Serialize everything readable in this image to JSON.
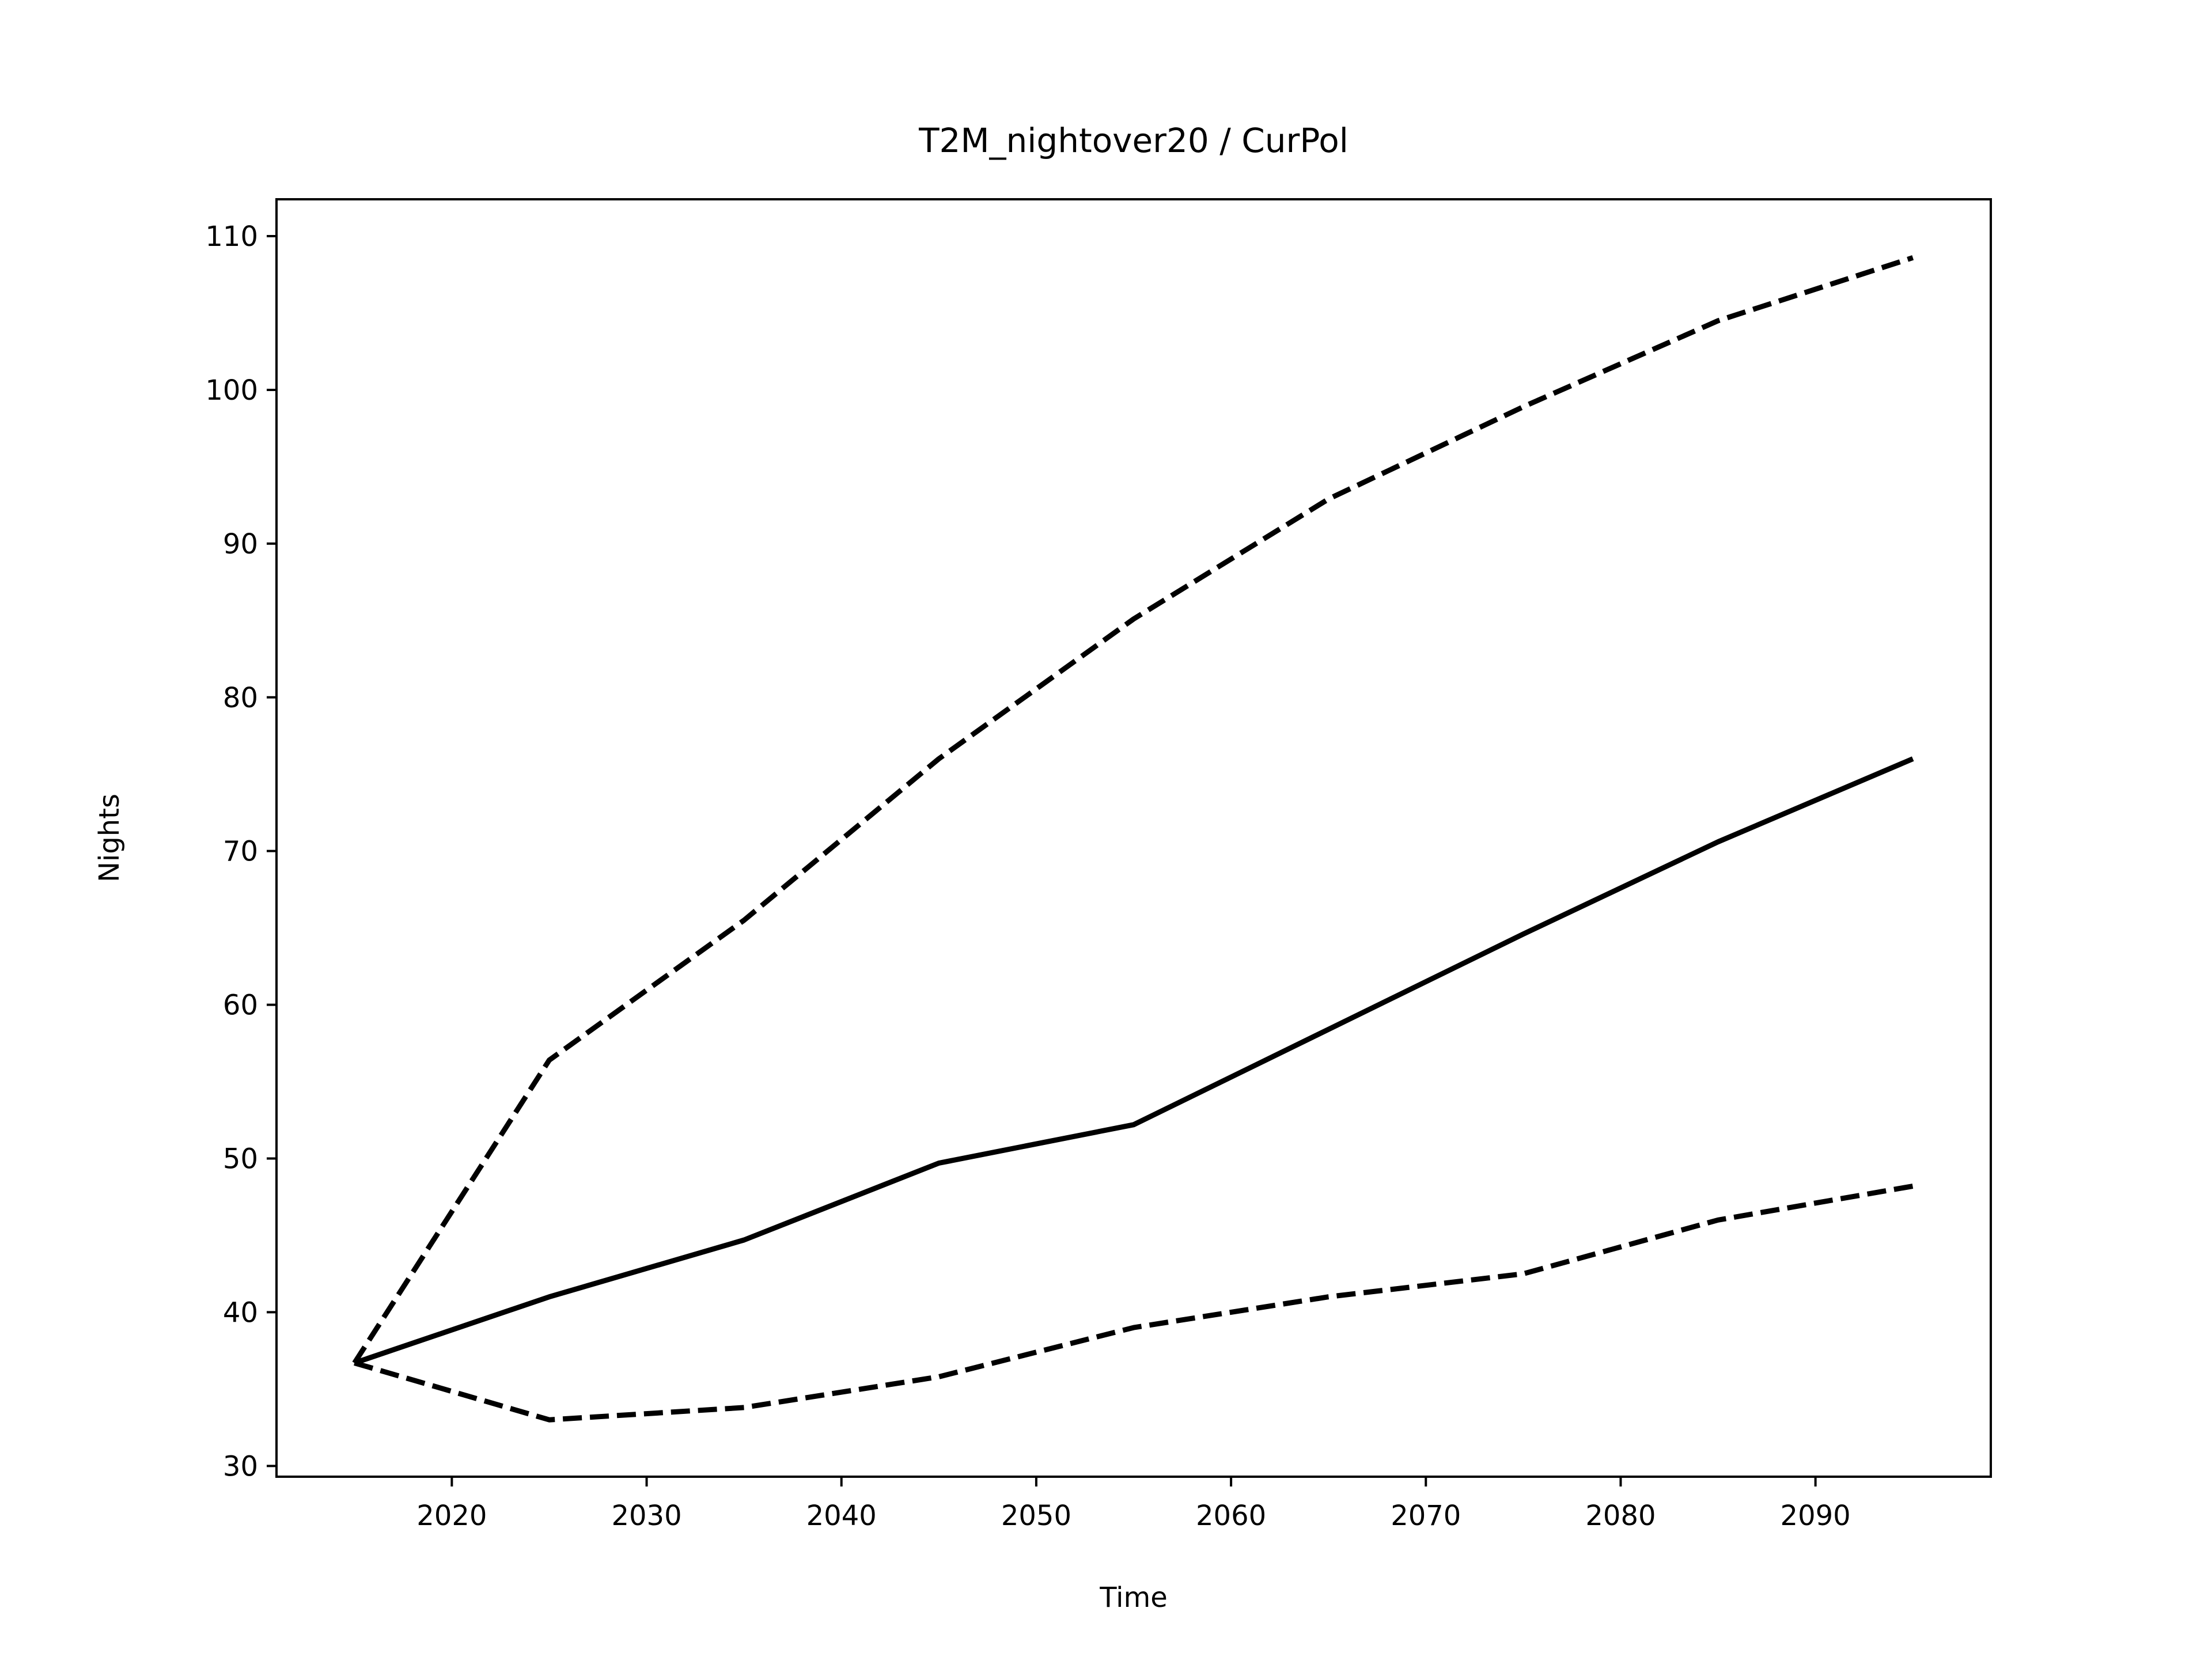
{
  "chart_data": {
    "type": "line",
    "title": "T2M_nightover20 / CurPol",
    "xlabel": "Time",
    "ylabel": "Nights",
    "xlim": [
      2011,
      2099
    ],
    "ylim": [
      29.3,
      112.4
    ],
    "xticks": [
      2020,
      2030,
      2040,
      2050,
      2060,
      2070,
      2080,
      2090
    ],
    "yticks": [
      30,
      40,
      50,
      60,
      70,
      80,
      90,
      100,
      110
    ],
    "grid": false,
    "x": [
      2015,
      2025,
      2035,
      2045,
      2055,
      2065,
      2075,
      2085,
      2095
    ],
    "series": [
      {
        "style": "solid",
        "color": "#000000",
        "values": [
          36.7,
          41.0,
          44.7,
          49.7,
          52.2,
          58.4,
          64.6,
          70.6,
          76.0
        ]
      },
      {
        "style": "dashed",
        "color": "#000000",
        "values": [
          36.7,
          56.4,
          65.5,
          76.0,
          85.1,
          92.9,
          98.9,
          104.5,
          108.6
        ]
      },
      {
        "style": "dashed",
        "color": "#000000",
        "values": [
          36.7,
          33.0,
          33.8,
          35.8,
          39.0,
          41.0,
          42.5,
          46.0,
          48.2
        ]
      }
    ]
  }
}
